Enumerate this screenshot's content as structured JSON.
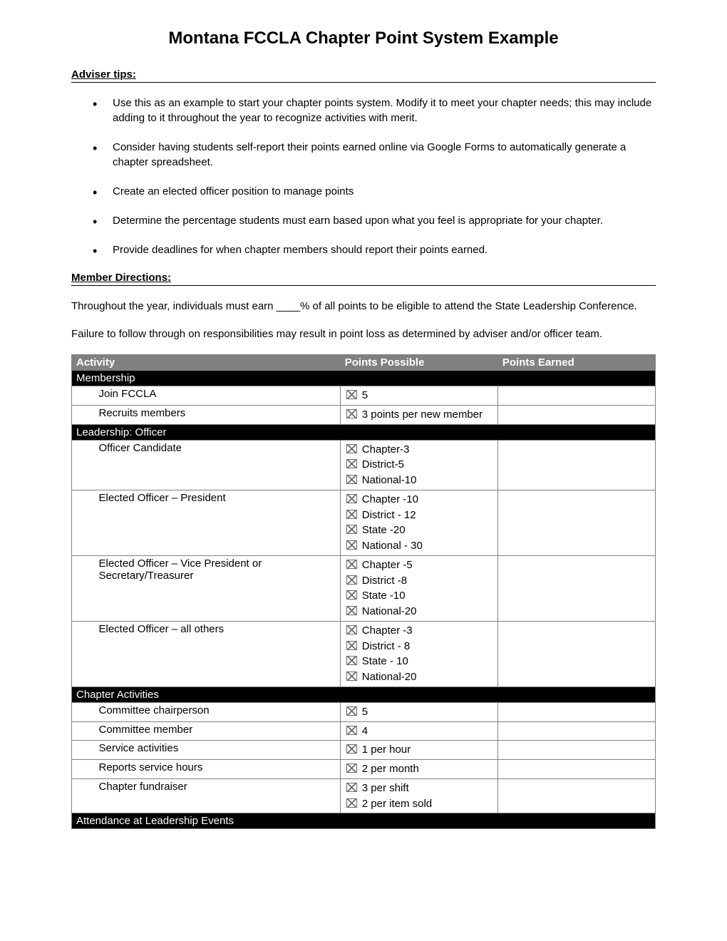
{
  "title": "Montana FCCLA Chapter Point System Example",
  "adviser_heading": "Adviser tips:",
  "adviser_tips": [
    "Use this as an example to start your chapter points system.  Modify it to meet your chapter needs; this may include adding to it throughout the year to recognize activities with merit.",
    "Consider having students self-report their points earned online via Google Forms to automatically generate a chapter spreadsheet.",
    "Create an elected officer position to manage points",
    "Determine the percentage students must earn based upon what you feel is appropriate for your chapter.",
    "Provide deadlines for when chapter members should report their points earned."
  ],
  "member_heading": "Member Directions:",
  "member_para1": "Throughout the year, individuals must earn ____% of all points to be eligible to attend the State Leadership Conference.",
  "member_para2": "Failure to follow through on responsibilities may result in point loss as determined by adviser and/or officer team.",
  "table": {
    "columns": {
      "activity": "Activity",
      "points_possible": "Points Possible",
      "points_earned": "Points Earned"
    },
    "sections": [
      {
        "title": "Membership",
        "rows": [
          {
            "activity": "Join FCCLA",
            "points": [
              "5"
            ]
          },
          {
            "activity": "Recruits members",
            "points": [
              "3 points per new member"
            ]
          }
        ]
      },
      {
        "title": "Leadership: Officer",
        "rows": [
          {
            "activity": "Officer Candidate",
            "points": [
              "Chapter-3",
              "District-5",
              "National-10"
            ]
          },
          {
            "activity": "Elected Officer – President",
            "points": [
              "Chapter -10",
              "District - 12",
              "State -20",
              "National - 30"
            ]
          },
          {
            "activity": "Elected Officer – Vice President or Secretary/Treasurer",
            "points": [
              "Chapter -5",
              "District -8",
              "State -10",
              "National-20"
            ]
          },
          {
            "activity": "Elected Officer – all others",
            "points": [
              "Chapter -3",
              "District - 8",
              "State - 10",
              "National-20"
            ]
          }
        ]
      },
      {
        "title": "Chapter Activities",
        "rows": [
          {
            "activity": "Committee chairperson",
            "points": [
              "5"
            ]
          },
          {
            "activity": "Committee member",
            "points": [
              "4"
            ]
          },
          {
            "activity": "Service activities",
            "points": [
              "1 per hour"
            ]
          },
          {
            "activity": "Reports service hours",
            "points": [
              "2 per month"
            ]
          },
          {
            "activity": "Chapter fundraiser",
            "points": [
              "3 per shift",
              "2 per item sold"
            ]
          }
        ]
      },
      {
        "title": "Attendance at Leadership Events",
        "rows": []
      }
    ]
  },
  "colors": {
    "header_bg": "#808080",
    "header_text": "#ffffff",
    "section_bg": "#000000",
    "section_text": "#ffffff",
    "border": "#808080",
    "icon_border": "#6b6b6b"
  }
}
